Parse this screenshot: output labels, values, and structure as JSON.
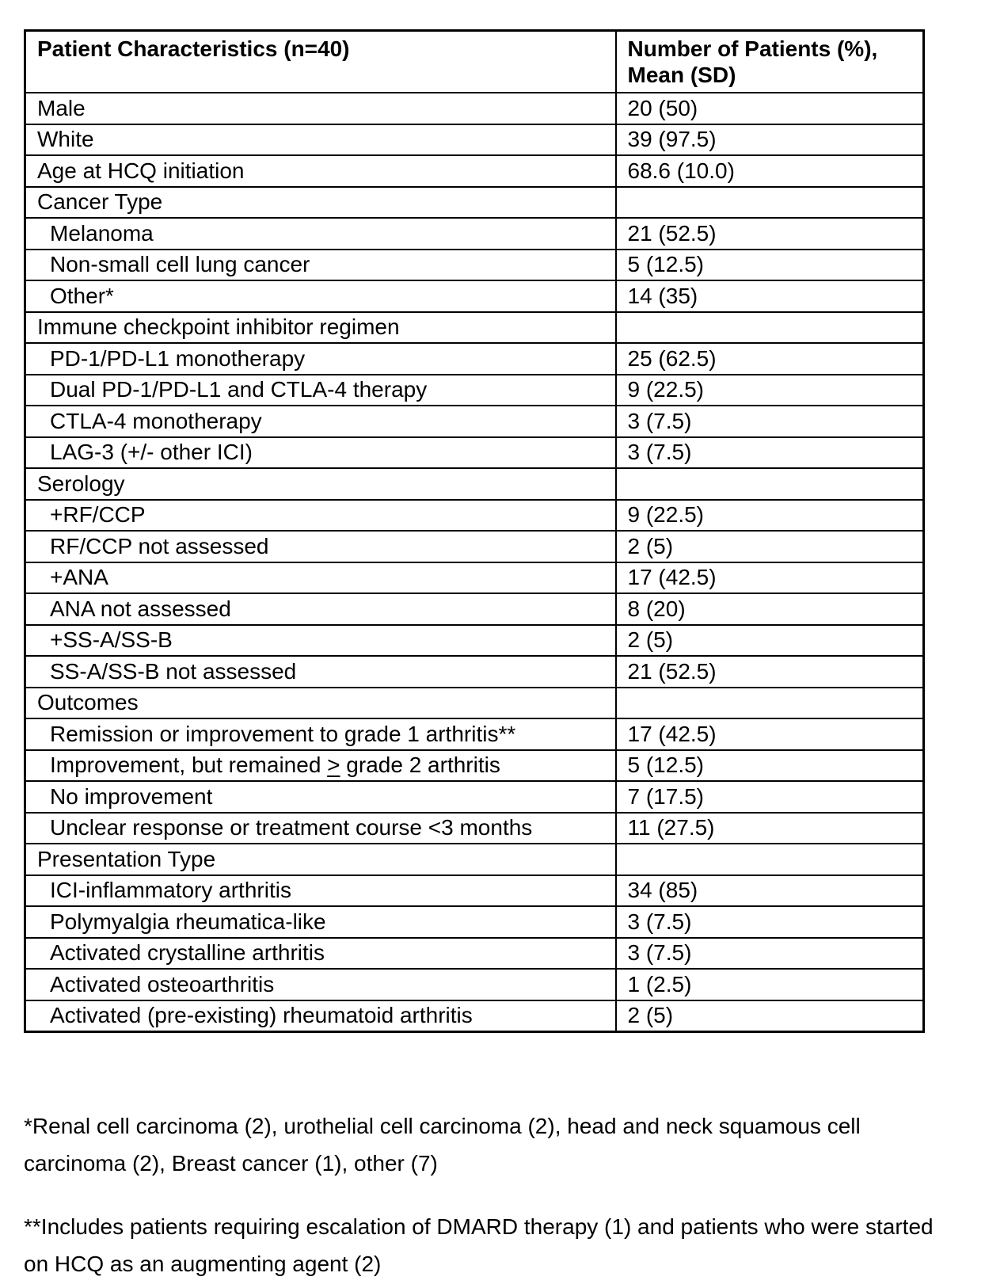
{
  "table": {
    "header": {
      "characteristics": "Patient Characteristics (n=40)",
      "patients": "Number of Patients (%), Mean (SD)"
    },
    "rows": [
      {
        "label": "Male",
        "value": "20 (50)",
        "indent": false
      },
      {
        "label": "White",
        "value": "39 (97.5)",
        "indent": false
      },
      {
        "label": "Age at HCQ initiation",
        "value": "68.6 (10.0)",
        "indent": false
      },
      {
        "label": "Cancer Type",
        "value": "",
        "indent": false
      },
      {
        "label": "Melanoma",
        "value": "21 (52.5)",
        "indent": true
      },
      {
        "label": "Non-small cell lung cancer",
        "value": "5 (12.5)",
        "indent": true
      },
      {
        "label": "Other*",
        "value": "14 (35)",
        "indent": true
      },
      {
        "label": "Immune checkpoint inhibitor regimen",
        "value": "",
        "indent": false
      },
      {
        "label": "PD-1/PD-L1 monotherapy",
        "value": "25 (62.5)",
        "indent": true
      },
      {
        "label": "Dual PD-1/PD-L1 and CTLA-4 therapy",
        "value": "9 (22.5)",
        "indent": true
      },
      {
        "label": "CTLA-4 monotherapy",
        "value": "3 (7.5)",
        "indent": true
      },
      {
        "label": "LAG-3 (+/- other ICI)",
        "value": "3 (7.5)",
        "indent": true
      },
      {
        "label": "Serology",
        "value": "",
        "indent": false
      },
      {
        "label": "+RF/CCP",
        "value": "9 (22.5)",
        "indent": true
      },
      {
        "label": "RF/CCP not assessed",
        "value": "2 (5)",
        "indent": true
      },
      {
        "label": "+ANA",
        "value": "17 (42.5)",
        "indent": true
      },
      {
        "label": "ANA not assessed",
        "value": "8 (20)",
        "indent": true
      },
      {
        "label": "+SS-A/SS-B",
        "value": "2 (5)",
        "indent": true
      },
      {
        "label": "SS-A/SS-B not assessed",
        "value": "21 (52.5)",
        "indent": true
      },
      {
        "label": "Outcomes",
        "value": "",
        "indent": false
      },
      {
        "label": "Remission or improvement to grade 1 arthritis**",
        "value": "17 (42.5)",
        "indent": true
      },
      {
        "label": "Improvement, but remained ≥ grade 2 arthritis",
        "value": "5 (12.5)",
        "indent": true
      },
      {
        "label": "No improvement",
        "value": "7 (17.5)",
        "indent": true
      },
      {
        "label": "Unclear response or treatment course <3 months",
        "value": "11 (27.5)",
        "indent": true
      },
      {
        "label": "Presentation Type",
        "value": "",
        "indent": false
      },
      {
        "label": "ICI-inflammatory arthritis",
        "value": "34 (85)",
        "indent": true
      },
      {
        "label": "Polymyalgia rheumatica-like",
        "value": "3 (7.5)",
        "indent": true
      },
      {
        "label": "Activated crystalline arthritis",
        "value": "3 (7.5)",
        "indent": true
      },
      {
        "label": "Activated osteoarthritis",
        "value": "1 (2.5)",
        "indent": true
      },
      {
        "label": "Activated (pre-existing) rheumatoid arthritis",
        "value": "2 (5)",
        "indent": true
      }
    ]
  },
  "footnotes": [
    "*Renal cell carcinoma (2), urothelial cell carcinoma (2), head and neck squamous cell carcinoma (2), Breast cancer (1), other (7)",
    "**Includes patients requiring escalation of DMARD therapy (1) and patients who were started on HCQ as an augmenting agent (2)"
  ],
  "colors": {
    "text": "#000000",
    "border": "#000000",
    "background": "#ffffff"
  }
}
